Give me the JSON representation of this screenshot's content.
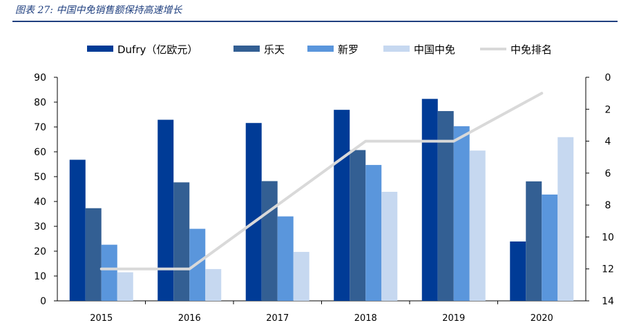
{
  "caption": "图表 27:  中国中免销售额保持高速增长",
  "chart_data": {
    "type": "bar",
    "categories": [
      "2015",
      "2016",
      "2017",
      "2018",
      "2019",
      "2020"
    ],
    "series": [
      {
        "name": "Dufry（亿欧元）",
        "values": [
          56.8,
          72.9,
          71.6,
          76.9,
          81.3,
          23.9
        ],
        "color": "#003b96"
      },
      {
        "name": "乐天",
        "values": [
          37.3,
          47.7,
          48.2,
          60.7,
          76.4,
          48.1
        ],
        "color": "#335f93"
      },
      {
        "name": "新罗",
        "values": [
          22.6,
          29.0,
          34.0,
          54.7,
          70.3,
          42.8
        ],
        "color": "#5a96dc"
      },
      {
        "name": "中国中免",
        "values": [
          11.5,
          12.8,
          19.7,
          43.9,
          60.5,
          65.9
        ],
        "color": "#c6d8f0"
      }
    ],
    "line_series": {
      "name": "中免排名",
      "values": [
        12,
        12,
        8,
        4,
        4,
        1
      ],
      "color": "#d9d9d9",
      "axis": "right"
    },
    "ylim": [
      0,
      90
    ],
    "yticks": [
      "0",
      "10",
      "20",
      "30",
      "40",
      "50",
      "60",
      "70",
      "80",
      "90"
    ],
    "y2lim": [
      0,
      14
    ],
    "y2_inverted": true,
    "y2ticks": [
      "0",
      "2",
      "4",
      "6",
      "8",
      "10",
      "12",
      "14"
    ],
    "legend_position": "top"
  }
}
